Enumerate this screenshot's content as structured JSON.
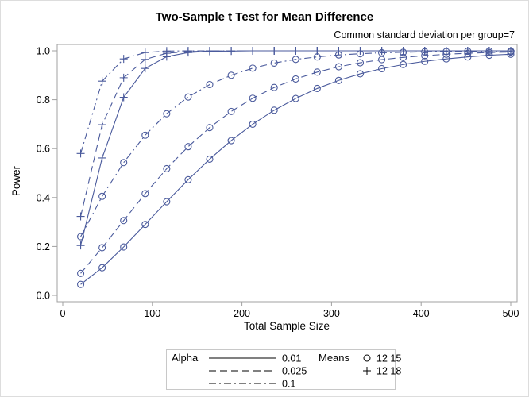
{
  "chart_data": {
    "type": "line",
    "title": "Two-Sample t Test for Mean Difference",
    "subtitle": "Common standard deviation per group=7",
    "xlabel": "Total Sample Size",
    "ylabel": "Power",
    "xlim": [
      0,
      500
    ],
    "ylim": [
      0,
      1
    ],
    "xticks": [
      "0",
      "100",
      "200",
      "300",
      "400",
      "500"
    ],
    "yticks": [
      "0.0",
      "0.2",
      "0.4",
      "0.6",
      "0.8",
      "1.0"
    ],
    "grid": false,
    "legend_placement": "bottom",
    "line_color": "#4a5a9c",
    "x": [
      20,
      44,
      68,
      92,
      116,
      140,
      164,
      188,
      212,
      236,
      260,
      284,
      308,
      332,
      356,
      380,
      404,
      428,
      452,
      476,
      500
    ],
    "legend": {
      "alpha_title": "Alpha",
      "alpha_items": [
        {
          "label": "0.01",
          "dash": "solid"
        },
        {
          "label": "0.025",
          "dash": "long-dash"
        },
        {
          "label": "0.1",
          "dash": "dash-dot"
        }
      ],
      "means_title": "Means",
      "means_items": [
        {
          "label": "12 15",
          "marker": "circle"
        },
        {
          "label": "12 18",
          "marker": "plus"
        }
      ]
    },
    "series": [
      {
        "alpha": "0.01",
        "means": "12 15",
        "values": [
          0.045,
          0.113,
          0.198,
          0.29,
          0.383,
          0.473,
          0.557,
          0.633,
          0.7,
          0.757,
          0.805,
          0.846,
          0.879,
          0.906,
          0.927,
          0.944,
          0.957,
          0.967,
          0.975,
          0.982,
          0.986
        ]
      },
      {
        "alpha": "0.025",
        "means": "12 15",
        "values": [
          0.09,
          0.195,
          0.306,
          0.416,
          0.518,
          0.608,
          0.686,
          0.752,
          0.806,
          0.85,
          0.885,
          0.913,
          0.935,
          0.951,
          0.964,
          0.973,
          0.98,
          0.986,
          0.99,
          0.993,
          0.995
        ]
      },
      {
        "alpha": "0.1",
        "means": "12 15",
        "values": [
          0.24,
          0.405,
          0.543,
          0.655,
          0.743,
          0.811,
          0.862,
          0.9,
          0.929,
          0.95,
          0.965,
          0.975,
          0.983,
          0.988,
          0.992,
          0.994,
          0.996,
          0.997,
          0.998,
          0.999,
          0.999
        ]
      },
      {
        "alpha": "0.01",
        "means": "12 18",
        "values": [
          0.204,
          0.562,
          0.81,
          0.928,
          0.976,
          0.993,
          0.998,
          0.999,
          1,
          1,
          1,
          1,
          1,
          1,
          1,
          1,
          1,
          1,
          1,
          1,
          1
        ]
      },
      {
        "alpha": "0.025",
        "means": "12 18",
        "values": [
          0.323,
          0.698,
          0.89,
          0.965,
          0.99,
          0.997,
          0.999,
          1,
          1,
          1,
          1,
          1,
          1,
          1,
          1,
          1,
          1,
          1,
          1,
          1,
          1
        ]
      },
      {
        "alpha": "0.1",
        "means": "12 18",
        "values": [
          0.58,
          0.876,
          0.967,
          0.993,
          0.999,
          1,
          1,
          1,
          1,
          1,
          1,
          1,
          1,
          1,
          1,
          1,
          1,
          1,
          1,
          1,
          1
        ]
      }
    ]
  }
}
